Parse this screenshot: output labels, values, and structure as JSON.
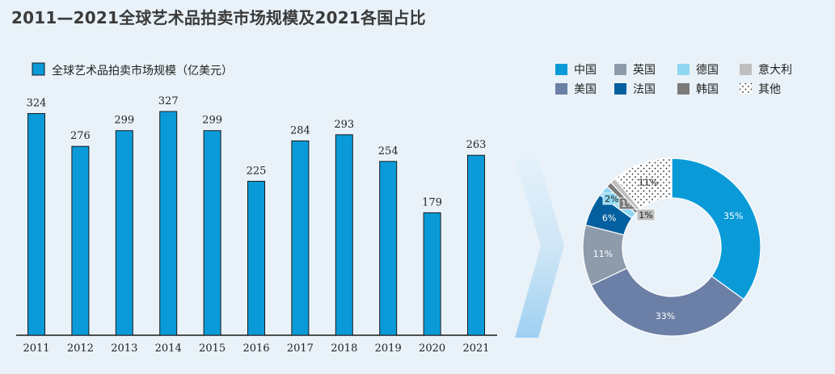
{
  "title": "2011—2021全球艺术品拍卖市场规模及2021各国占比",
  "chart_data": [
    {
      "type": "bar",
      "categories": [
        "2011",
        "2012",
        "2013",
        "2014",
        "2015",
        "2016",
        "2017",
        "2018",
        "2019",
        "2020",
        "2021"
      ],
      "series": [
        {
          "name": "全球艺术品拍卖市场规模（亿美元）",
          "values": [
            324,
            276,
            299,
            327,
            299,
            225,
            284,
            293,
            254,
            179,
            263
          ]
        }
      ],
      "data_labels": [
        "324",
        "276",
        "299",
        "327",
        "299",
        "225",
        "284",
        "293",
        "254",
        "179",
        "263"
      ],
      "ylim": [
        0,
        340
      ],
      "grid": false,
      "legend_position": "top-left",
      "bar_color": "#0a9ad8"
    },
    {
      "type": "pie",
      "donut": true,
      "legend_position": "top",
      "slices": [
        {
          "name": "中国",
          "value": 35,
          "label": "35%",
          "color": "#0a9ad8",
          "pattern": "solid"
        },
        {
          "name": "美国",
          "value": 33,
          "label": "33%",
          "color": "#6c7fa6",
          "pattern": "solid"
        },
        {
          "name": "英国",
          "value": 11,
          "label": "11%",
          "color": "#8d9bab",
          "pattern": "solid"
        },
        {
          "name": "法国",
          "value": 6,
          "label": "6%",
          "color": "#035f9e",
          "pattern": "solid"
        },
        {
          "name": "德国",
          "value": 2,
          "label": "2%",
          "color": "#8fd6f1",
          "pattern": "solid"
        },
        {
          "name": "韩国",
          "value": 1,
          "label": "1%",
          "color": "#7b7b7b",
          "pattern": "solid"
        },
        {
          "name": "意大利",
          "value": 1,
          "label": "1%",
          "color": "#bfbfbf",
          "pattern": "solid"
        },
        {
          "name": "其他",
          "value": 11,
          "label": "11%",
          "color": "#ffffff",
          "pattern": "dots"
        }
      ],
      "legend_rows": [
        [
          "中国",
          "英国",
          "德国",
          "意大利"
        ],
        [
          "美国",
          "法国",
          "韩国",
          "其他"
        ]
      ]
    }
  ]
}
